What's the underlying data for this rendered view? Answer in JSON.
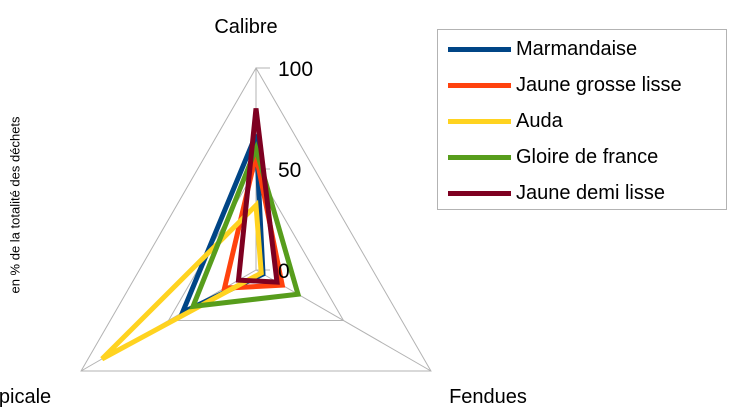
{
  "chart_data": {
    "type": "radar",
    "axes": [
      "Calibre",
      "Fendues",
      "Atypicale"
    ],
    "ylabel": "en % de la totalité des déchets",
    "ticks": [
      0,
      50,
      100
    ],
    "rmax": 100,
    "grid": true,
    "legend_position": "top-right",
    "series": [
      {
        "name": "Marmandaise",
        "color": "#004586",
        "values": [
          67,
          4,
          42
        ]
      },
      {
        "name": "Jaune grosse lisse",
        "color": "#ff420e",
        "values": [
          57,
          15,
          18
        ]
      },
      {
        "name": "Auda",
        "color": "#ffd320",
        "values": [
          32,
          3,
          88
        ]
      },
      {
        "name": "Gloire de france",
        "color": "#579d1c",
        "values": [
          60,
          24,
          36
        ]
      },
      {
        "name": "Jaune demi lisse",
        "color": "#7e0021",
        "values": [
          80,
          12,
          10
        ]
      }
    ]
  }
}
